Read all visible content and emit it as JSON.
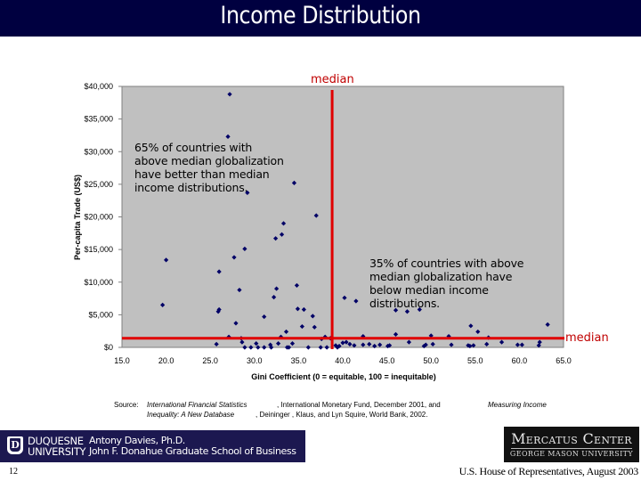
{
  "header": {
    "title": "Income Distribution"
  },
  "chart_data": {
    "type": "scatter",
    "title": "Income Distribution",
    "xlabel": "Gini Coefficient (0 = equitable, 100 = inequitable)",
    "ylabel": "Per-capita Trade (US$)",
    "xlim": [
      15.0,
      65.0
    ],
    "ylim": [
      0,
      40000
    ],
    "x_ticks": [
      "15.0",
      "20.0",
      "25.0",
      "30.0",
      "35.0",
      "40.0",
      "45.0",
      "50.0",
      "55.0",
      "60.0",
      "65.0"
    ],
    "y_ticks": [
      "$0",
      "$5,000",
      "$10,000",
      "$15,000",
      "$20,000",
      "$25,000",
      "$30,000",
      "$35,000",
      "$40,000"
    ],
    "grid": false,
    "legend": null,
    "plot_background": "#c0c0c0",
    "marker_color": "#000066",
    "median_line_color": "#e00000",
    "median_x": 38.8,
    "median_y": 1400,
    "median_labels": {
      "vertical": "median",
      "horizontal": "median"
    },
    "annotations": [
      "65% of countries with above median globalization have better than median income distributions.",
      "35% of countries with above median globalization have below median income distributions."
    ],
    "points": [
      [
        27.2,
        38800
      ],
      [
        27.0,
        32300
      ],
      [
        29.2,
        23700
      ],
      [
        34.5,
        25200
      ],
      [
        37.0,
        20200
      ],
      [
        33.3,
        19000
      ],
      [
        33.1,
        17300
      ],
      [
        32.4,
        16700
      ],
      [
        28.9,
        15100
      ],
      [
        27.7,
        13800
      ],
      [
        20.0,
        13400
      ],
      [
        26.0,
        11600
      ],
      [
        34.8,
        9500
      ],
      [
        32.5,
        9000
      ],
      [
        28.3,
        8800
      ],
      [
        32.2,
        7700
      ],
      [
        40.2,
        7600
      ],
      [
        41.5,
        7100
      ],
      [
        46.0,
        5700
      ],
      [
        47.3,
        5500
      ],
      [
        48.7,
        5800
      ],
      [
        19.6,
        6500
      ],
      [
        26.0,
        5800
      ],
      [
        25.9,
        5500
      ],
      [
        34.9,
        5900
      ],
      [
        35.6,
        5800
      ],
      [
        31.1,
        4700
      ],
      [
        36.6,
        4800
      ],
      [
        27.9,
        3700
      ],
      [
        35.4,
        3200
      ],
      [
        36.8,
        3100
      ],
      [
        33.6,
        2400
      ],
      [
        38.0,
        1600
      ],
      [
        27.1,
        1600
      ],
      [
        28.5,
        1400
      ],
      [
        33.0,
        1600
      ],
      [
        42.3,
        1700
      ],
      [
        46.0,
        2000
      ],
      [
        52.0,
        1700
      ],
      [
        56.5,
        1500
      ],
      [
        63.2,
        3500
      ],
      [
        54.5,
        3300
      ],
      [
        55.3,
        2400
      ],
      [
        50.0,
        1800
      ],
      [
        47.5,
        800
      ],
      [
        25.7,
        500
      ],
      [
        28.6,
        800
      ],
      [
        30.2,
        600
      ],
      [
        31.8,
        400
      ],
      [
        32.7,
        600
      ],
      [
        34.3,
        600
      ],
      [
        28.9,
        0
      ],
      [
        29.6,
        0
      ],
      [
        30.4,
        0
      ],
      [
        31.1,
        0
      ],
      [
        31.9,
        0
      ],
      [
        33.7,
        0
      ],
      [
        33.9,
        0
      ],
      [
        36.1,
        0
      ],
      [
        37.5,
        0
      ],
      [
        38.2,
        0
      ],
      [
        39.2,
        300
      ],
      [
        39.4,
        0
      ],
      [
        39.6,
        200
      ],
      [
        40.0,
        700
      ],
      [
        40.4,
        800
      ],
      [
        40.8,
        500
      ],
      [
        41.3,
        300
      ],
      [
        42.3,
        400
      ],
      [
        43.0,
        500
      ],
      [
        43.6,
        200
      ],
      [
        44.2,
        400
      ],
      [
        45.1,
        200
      ],
      [
        45.3,
        300
      ],
      [
        49.2,
        200
      ],
      [
        49.4,
        400
      ],
      [
        50.2,
        500
      ],
      [
        52.3,
        400
      ],
      [
        54.2,
        300
      ],
      [
        54.4,
        200
      ],
      [
        54.8,
        300
      ],
      [
        56.3,
        500
      ],
      [
        59.8,
        400
      ],
      [
        60.3,
        400
      ],
      [
        62.2,
        300
      ],
      [
        62.3,
        800
      ],
      [
        37.6,
        1300
      ],
      [
        38.6,
        1400
      ],
      [
        58.0,
        800
      ]
    ]
  },
  "annotations": {
    "left": "65% of countries with above median globalization have better than median income distributions.",
    "left_lines": [
      "65% of countries with",
      "above median globalization",
      "have better than median",
      "income distributions."
    ],
    "right_lines": [
      "35% of countries with above",
      "median globalization have",
      "below median income",
      "distributions."
    ]
  },
  "median_labels": {
    "top": "median",
    "right": "median"
  },
  "source": {
    "prefix": "Source:",
    "title1": "International Financial Statistics",
    "text1": ", International Monetary Fund, December 2001, and",
    "title2_part1": "Measuring Income",
    "title2_part2": "Inequality: A New Database",
    "text2": ", Deininger , Klaus, and Lyn Squire, World Bank, 2002."
  },
  "footer": {
    "university_line1": "DUQUESNE",
    "university_line2": "UNIVERSITY",
    "author_line1": "Antony Davies, Ph.D.",
    "author_line2": "John F. Donahue Graduate School of Business",
    "shield_letter": "D",
    "mercatus_line1": "Mercatus Center",
    "mercatus_line2": "GEORGE MASON UNIVERSITY",
    "page_number": "12",
    "venue": "U.S. House of Representatives, August 2003"
  }
}
